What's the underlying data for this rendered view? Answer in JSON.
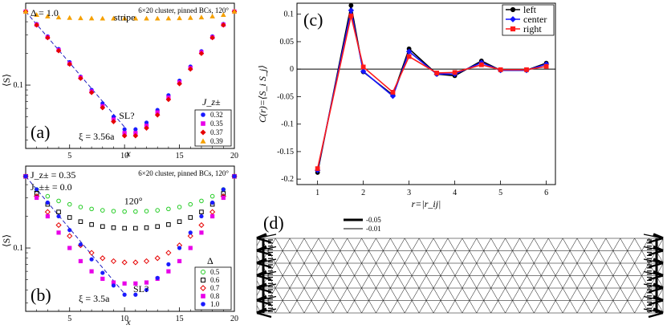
{
  "chart_data": [
    {
      "id": "a",
      "type": "scatter",
      "panel_label": "(a)",
      "title": "6×20 cluster, pinned BCs, 120°",
      "param_text": "Δ = 1.0",
      "xlabel": "x",
      "ylabel": "⟨S⟩",
      "xlim": [
        1,
        20
      ],
      "ylim": [
        0.025,
        0.6
      ],
      "yscale": "log",
      "xticks": [
        5,
        10,
        15,
        20
      ],
      "yticks": [
        {
          "value": 0.1,
          "label": "0.1"
        }
      ],
      "legend_title": "J_z±",
      "fit_label": "ξ = 3.56a",
      "fit": {
        "x0": 1,
        "y0": 0.5,
        "xi": 3.56,
        "x_end": 10
      },
      "annotations": [
        {
          "text": "stripe",
          "x": 10,
          "y": 0.41,
          "color": "#e69500"
        },
        {
          "text": "SL?",
          "x": 10.2,
          "y": 0.048,
          "color": "#1a1acc"
        }
      ],
      "x": [
        1,
        2,
        3,
        4,
        5,
        6,
        7,
        8,
        9,
        10,
        11,
        12,
        13,
        14,
        15,
        16,
        17,
        18,
        19,
        20
      ],
      "series": [
        {
          "name": "0.32",
          "color": "#1a1aff",
          "marker": "circle-filled",
          "values": [
            0.5,
            0.38,
            0.29,
            0.22,
            0.165,
            0.12,
            0.09,
            0.067,
            0.05,
            0.038,
            0.038,
            0.044,
            0.058,
            0.08,
            0.11,
            0.15,
            0.21,
            0.29,
            0.38,
            0.5
          ]
        },
        {
          "name": "0.35",
          "color": "#e800e8",
          "marker": "square-filled",
          "values": [
            0.5,
            0.375,
            0.285,
            0.215,
            0.16,
            0.118,
            0.087,
            0.063,
            0.047,
            0.035,
            0.035,
            0.041,
            0.055,
            0.076,
            0.106,
            0.145,
            0.205,
            0.285,
            0.375,
            0.5
          ]
        },
        {
          "name": "0.37",
          "color": "#e60000",
          "marker": "diamond-filled",
          "values": [
            0.5,
            0.372,
            0.282,
            0.212,
            0.158,
            0.116,
            0.085,
            0.061,
            0.045,
            0.033,
            0.033,
            0.039,
            0.052,
            0.073,
            0.103,
            0.142,
            0.2,
            0.282,
            0.372,
            0.5
          ]
        },
        {
          "name": "0.39",
          "color": "#f5a000",
          "marker": "triangle-filled",
          "values": [
            0.5,
            0.465,
            0.45,
            0.44,
            0.436,
            0.433,
            0.431,
            0.43,
            0.43,
            0.43,
            0.43,
            0.43,
            0.43,
            0.431,
            0.433,
            0.436,
            0.44,
            0.45,
            0.465,
            0.5
          ]
        }
      ]
    },
    {
      "id": "b",
      "type": "scatter",
      "panel_label": "(b)",
      "title": "6×20 cluster, pinned BCs, 120°",
      "param_text_1": "J_z± = 0.35",
      "param_text_2": "J_±± = 0.0",
      "xlabel": "x",
      "ylabel": "⟨S⟩",
      "xlim": [
        1,
        20
      ],
      "ylim": [
        0.025,
        0.6
      ],
      "yscale": "log",
      "xticks": [
        5,
        10,
        15,
        20
      ],
      "yticks": [
        {
          "value": 0.1,
          "label": "0.1"
        }
      ],
      "legend_title": "Δ",
      "fit_label": "ξ = 3.5a",
      "fit": {
        "x0": 1,
        "y0": 0.48,
        "xi": 3.5,
        "x_end": 10
      },
      "annotations": [
        {
          "text": "120°",
          "x": 10.8,
          "y": 0.26,
          "color": "#1ec41e"
        },
        {
          "text": "SL?",
          "x": 11.5,
          "y": 0.038,
          "color": "#1a1acc"
        }
      ],
      "x": [
        1,
        2,
        3,
        4,
        5,
        6,
        7,
        8,
        9,
        10,
        11,
        12,
        13,
        14,
        15,
        16,
        17,
        18,
        19,
        20
      ],
      "series": [
        {
          "name": "0.5",
          "color": "#22cc22",
          "marker": "circle-open",
          "values": [
            0.48,
            0.36,
            0.31,
            0.28,
            0.26,
            0.245,
            0.235,
            0.228,
            0.224,
            0.222,
            0.222,
            0.224,
            0.228,
            0.235,
            0.245,
            0.26,
            0.28,
            0.31,
            0.36,
            0.48
          ]
        },
        {
          "name": "0.6",
          "color": "#000000",
          "marker": "square-open",
          "values": [
            0.48,
            0.33,
            0.26,
            0.22,
            0.195,
            0.178,
            0.167,
            0.16,
            0.156,
            0.154,
            0.154,
            0.156,
            0.16,
            0.167,
            0.178,
            0.195,
            0.22,
            0.26,
            0.33,
            0.48
          ]
        },
        {
          "name": "0.7",
          "color": "#e60000",
          "marker": "diamond-open",
          "values": [
            0.48,
            0.31,
            0.22,
            0.165,
            0.13,
            0.106,
            0.09,
            0.08,
            0.075,
            0.073,
            0.073,
            0.075,
            0.08,
            0.09,
            0.106,
            0.13,
            0.165,
            0.22,
            0.31,
            0.48
          ]
        },
        {
          "name": "0.8",
          "color": "#e800e8",
          "marker": "square-filled",
          "values": [
            0.48,
            0.3,
            0.2,
            0.14,
            0.1,
            0.075,
            0.06,
            0.051,
            0.047,
            0.046,
            0.046,
            0.047,
            0.051,
            0.06,
            0.075,
            0.1,
            0.14,
            0.2,
            0.3,
            0.48
          ]
        },
        {
          "name": "1.0",
          "color": "#1a1aff",
          "marker": "circle-filled",
          "values": [
            0.48,
            0.36,
            0.27,
            0.2,
            0.148,
            0.108,
            0.078,
            0.058,
            0.044,
            0.036,
            0.036,
            0.04,
            0.052,
            0.07,
            0.1,
            0.14,
            0.2,
            0.27,
            0.36,
            0.48
          ]
        }
      ]
    },
    {
      "id": "c",
      "type": "line",
      "panel_label": "(c)",
      "xlabel": "r=|r_ij|",
      "ylabel": "C(r)=⟨S_i S_j⟩",
      "xlim": [
        0.55,
        6.2
      ],
      "ylim": [
        -0.21,
        0.12
      ],
      "xticks": [
        1,
        2,
        3,
        4,
        5,
        6
      ],
      "yticks": [
        -0.2,
        -0.15,
        -0.1,
        -0.05,
        0,
        0.05,
        0.1
      ],
      "x": [
        1,
        1.732,
        2,
        2.646,
        3,
        3.606,
        4,
        4.583,
        5,
        5.568,
        6
      ],
      "series": [
        {
          "name": "left",
          "color": "#000000",
          "marker": "circle",
          "values": [
            -0.188,
            0.116,
            -0.005,
            -0.047,
            0.037,
            -0.009,
            -0.012,
            0.015,
            -0.002,
            -0.002,
            0.011
          ]
        },
        {
          "name": "center",
          "color": "#1414ff",
          "marker": "diamond",
          "values": [
            -0.184,
            0.107,
            -0.004,
            -0.049,
            0.032,
            -0.009,
            -0.009,
            0.012,
            -0.002,
            -0.002,
            0.009
          ]
        },
        {
          "name": "right",
          "color": "#ff1a1a",
          "marker": "square",
          "values": [
            -0.181,
            0.097,
            0.004,
            -0.042,
            0.023,
            -0.007,
            -0.006,
            0.008,
            -0.001,
            -0.001,
            0.005
          ]
        }
      ]
    },
    {
      "id": "d",
      "type": "diagram",
      "panel_label": "(d)",
      "legend": [
        {
          "label": "-0.05",
          "weight": "thick"
        },
        {
          "label": "-0.01",
          "weight": "thin"
        }
      ]
    }
  ]
}
